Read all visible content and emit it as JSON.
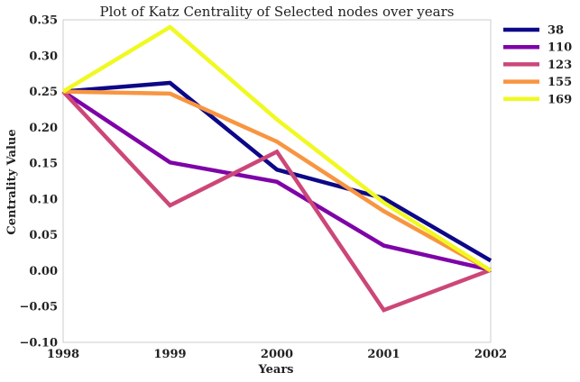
{
  "chart_data": {
    "type": "line",
    "title": "Plot of Katz Centrality of Selected nodes over years",
    "xlabel": "Years",
    "ylabel": "Centrality Value",
    "x": [
      1998,
      1999,
      2000,
      2001,
      2002
    ],
    "x_tick_labels": [
      "1998",
      "1999",
      "2000",
      "2001",
      "2002"
    ],
    "ylim": [
      -0.1,
      0.35
    ],
    "y_ticks": [
      -0.1,
      -0.05,
      0.0,
      0.05,
      0.1,
      0.15,
      0.2,
      0.25,
      0.3,
      0.35
    ],
    "y_tick_labels": [
      "−0.10",
      "−0.05",
      "0.00",
      "0.05",
      "0.10",
      "0.15",
      "0.20",
      "0.25",
      "0.30",
      "0.35"
    ],
    "grid": false,
    "legend_position": "outside-top-right",
    "series": [
      {
        "name": "38",
        "color": "#0d0887",
        "values": [
          0.25,
          0.262,
          0.141,
          0.101,
          0.014
        ]
      },
      {
        "name": "110",
        "color": "#7e03a8",
        "values": [
          0.25,
          0.151,
          0.124,
          0.035,
          0.001
        ]
      },
      {
        "name": "123",
        "color": "#cc4778",
        "values": [
          0.25,
          0.091,
          0.166,
          -0.055,
          0.001
        ]
      },
      {
        "name": "155",
        "color": "#f89540",
        "values": [
          0.25,
          0.247,
          0.18,
          0.083,
          0.0
        ]
      },
      {
        "name": "169",
        "color": "#f0f921",
        "values": [
          0.25,
          0.34,
          0.211,
          0.095,
          0.0
        ]
      }
    ]
  }
}
